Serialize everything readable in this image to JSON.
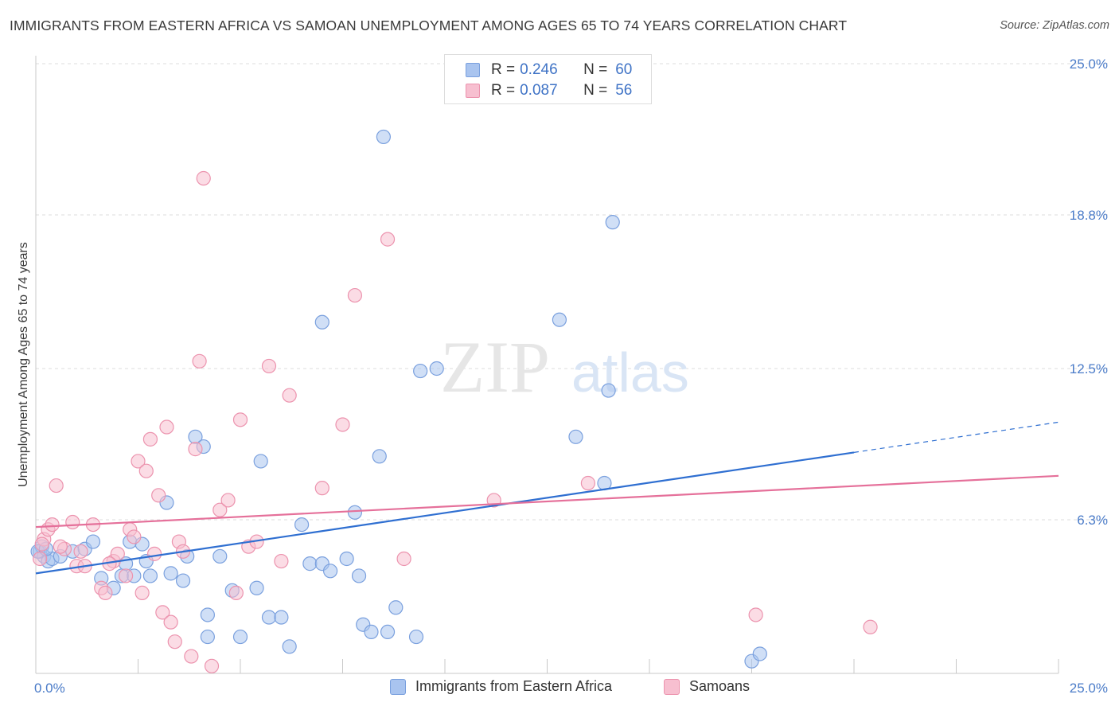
{
  "title": "IMMIGRANTS FROM EASTERN AFRICA VS SAMOAN UNEMPLOYMENT AMONG AGES 65 TO 74 YEARS CORRELATION CHART",
  "source": "Source: ZipAtlas.com",
  "watermark": {
    "zip": "ZIP",
    "atlas": "atlas"
  },
  "legend_top": {
    "rows": [
      {
        "r_label": "R =",
        "r_value": "0.246",
        "n_label": "N =",
        "n_value": "60",
        "color": "#a9c4ef",
        "border": "#7aa0de"
      },
      {
        "r_label": "R =",
        "r_value": "0.087",
        "n_label": "N =",
        "n_value": "56",
        "color": "#f7bfd0",
        "border": "#ec93ae"
      }
    ]
  },
  "legend_bottom": [
    {
      "label": "Immigrants from Eastern Africa",
      "color": "#a9c4ef",
      "border": "#7aa0de"
    },
    {
      "label": "Samoans",
      "color": "#f7bfd0",
      "border": "#ec93ae"
    }
  ],
  "chart_data": {
    "type": "scatter",
    "title": "IMMIGRANTS FROM EASTERN AFRICA VS SAMOAN UNEMPLOYMENT AMONG AGES 65 TO 74 YEARS CORRELATION CHART",
    "xlabel": "",
    "ylabel": "Unemployment Among Ages 65 to 74 years",
    "xlim": [
      0,
      25
    ],
    "ylim": [
      0,
      25
    ],
    "x_tick_labels": [
      "0.0%",
      "25.0%"
    ],
    "y_ticks": [
      6.3,
      12.5,
      18.8,
      25.0
    ],
    "y_tick_labels": [
      "6.3%",
      "12.5%",
      "18.8%",
      "25.0%"
    ],
    "grid": true,
    "series": [
      {
        "name": "Immigrants from Eastern Africa",
        "color": "#7aa0de",
        "fill": "#a9c4ef",
        "trend": {
          "x": [
            0,
            25
          ],
          "y": [
            4.1,
            10.3
          ],
          "solid_until_x": 20,
          "color": "#2f6fd1"
        },
        "points": [
          [
            0.1,
            5.0
          ],
          [
            0.15,
            5.2
          ],
          [
            0.2,
            4.8
          ],
          [
            0.3,
            4.6
          ],
          [
            0.4,
            4.7
          ],
          [
            0.6,
            4.8
          ],
          [
            0.9,
            5.0
          ],
          [
            1.2,
            5.1
          ],
          [
            1.4,
            5.4
          ],
          [
            1.6,
            3.9
          ],
          [
            1.9,
            3.5
          ],
          [
            2.1,
            4.0
          ],
          [
            2.2,
            4.5
          ],
          [
            2.3,
            5.4
          ],
          [
            2.4,
            4.0
          ],
          [
            2.6,
            5.3
          ],
          [
            2.7,
            4.6
          ],
          [
            2.8,
            4.0
          ],
          [
            3.2,
            7.0
          ],
          [
            3.3,
            4.1
          ],
          [
            3.6,
            3.8
          ],
          [
            3.7,
            4.8
          ],
          [
            3.9,
            9.7
          ],
          [
            4.1,
            9.3
          ],
          [
            4.2,
            2.4
          ],
          [
            4.2,
            1.5
          ],
          [
            4.5,
            4.8
          ],
          [
            4.8,
            3.4
          ],
          [
            5.0,
            1.5
          ],
          [
            5.4,
            3.5
          ],
          [
            5.5,
            8.7
          ],
          [
            5.7,
            2.3
          ],
          [
            6.0,
            2.3
          ],
          [
            6.2,
            1.1
          ],
          [
            6.5,
            6.1
          ],
          [
            6.7,
            4.5
          ],
          [
            7.0,
            4.5
          ],
          [
            7.0,
            14.4
          ],
          [
            7.2,
            4.2
          ],
          [
            7.6,
            4.7
          ],
          [
            7.8,
            6.6
          ],
          [
            7.9,
            4.0
          ],
          [
            8.0,
            2.0
          ],
          [
            8.2,
            1.7
          ],
          [
            8.4,
            8.9
          ],
          [
            8.5,
            22.0
          ],
          [
            8.6,
            1.7
          ],
          [
            8.8,
            2.7
          ],
          [
            9.3,
            1.5
          ],
          [
            9.4,
            12.4
          ],
          [
            9.8,
            12.5
          ],
          [
            12.8,
            14.5
          ],
          [
            13.2,
            9.7
          ],
          [
            13.9,
            7.8
          ],
          [
            14.0,
            11.6
          ],
          [
            14.1,
            18.5
          ],
          [
            17.5,
            0.5
          ],
          [
            17.7,
            0.8
          ],
          [
            0.05,
            5.0
          ],
          [
            0.25,
            5.1
          ]
        ]
      },
      {
        "name": "Samoans",
        "color": "#ec93ae",
        "fill": "#f7bfd0",
        "trend": {
          "x": [
            0,
            25
          ],
          "y": [
            6.0,
            8.1
          ],
          "solid_until_x": 25,
          "color": "#e5709a"
        },
        "points": [
          [
            0.1,
            4.7
          ],
          [
            0.2,
            5.5
          ],
          [
            0.3,
            5.9
          ],
          [
            0.4,
            6.1
          ],
          [
            0.5,
            7.7
          ],
          [
            0.7,
            5.1
          ],
          [
            0.9,
            6.2
          ],
          [
            1.0,
            4.4
          ],
          [
            1.1,
            5.0
          ],
          [
            1.2,
            4.4
          ],
          [
            1.4,
            6.1
          ],
          [
            1.6,
            3.5
          ],
          [
            1.7,
            3.3
          ],
          [
            1.9,
            4.6
          ],
          [
            2.0,
            4.9
          ],
          [
            2.2,
            4.0
          ],
          [
            2.3,
            5.9
          ],
          [
            2.4,
            5.6
          ],
          [
            2.5,
            8.7
          ],
          [
            2.6,
            3.3
          ],
          [
            2.7,
            8.3
          ],
          [
            2.8,
            9.6
          ],
          [
            3.0,
            7.3
          ],
          [
            3.1,
            2.5
          ],
          [
            3.2,
            10.1
          ],
          [
            3.3,
            2.1
          ],
          [
            3.4,
            1.3
          ],
          [
            3.5,
            5.4
          ],
          [
            3.6,
            5.0
          ],
          [
            3.8,
            0.7
          ],
          [
            3.9,
            9.2
          ],
          [
            4.0,
            12.8
          ],
          [
            4.1,
            20.3
          ],
          [
            4.3,
            0.3
          ],
          [
            4.5,
            6.7
          ],
          [
            4.7,
            7.1
          ],
          [
            5.0,
            10.4
          ],
          [
            5.2,
            5.2
          ],
          [
            5.4,
            5.4
          ],
          [
            5.7,
            12.6
          ],
          [
            6.0,
            4.6
          ],
          [
            6.2,
            11.4
          ],
          [
            7.0,
            7.6
          ],
          [
            7.5,
            10.2
          ],
          [
            7.8,
            15.5
          ],
          [
            8.6,
            17.8
          ],
          [
            9.0,
            4.7
          ],
          [
            11.2,
            7.1
          ],
          [
            13.5,
            7.8
          ],
          [
            17.6,
            2.4
          ],
          [
            20.4,
            1.9
          ],
          [
            0.15,
            5.3
          ],
          [
            0.6,
            5.2
          ],
          [
            1.8,
            4.5
          ],
          [
            2.9,
            4.9
          ],
          [
            4.9,
            3.3
          ]
        ]
      }
    ]
  }
}
